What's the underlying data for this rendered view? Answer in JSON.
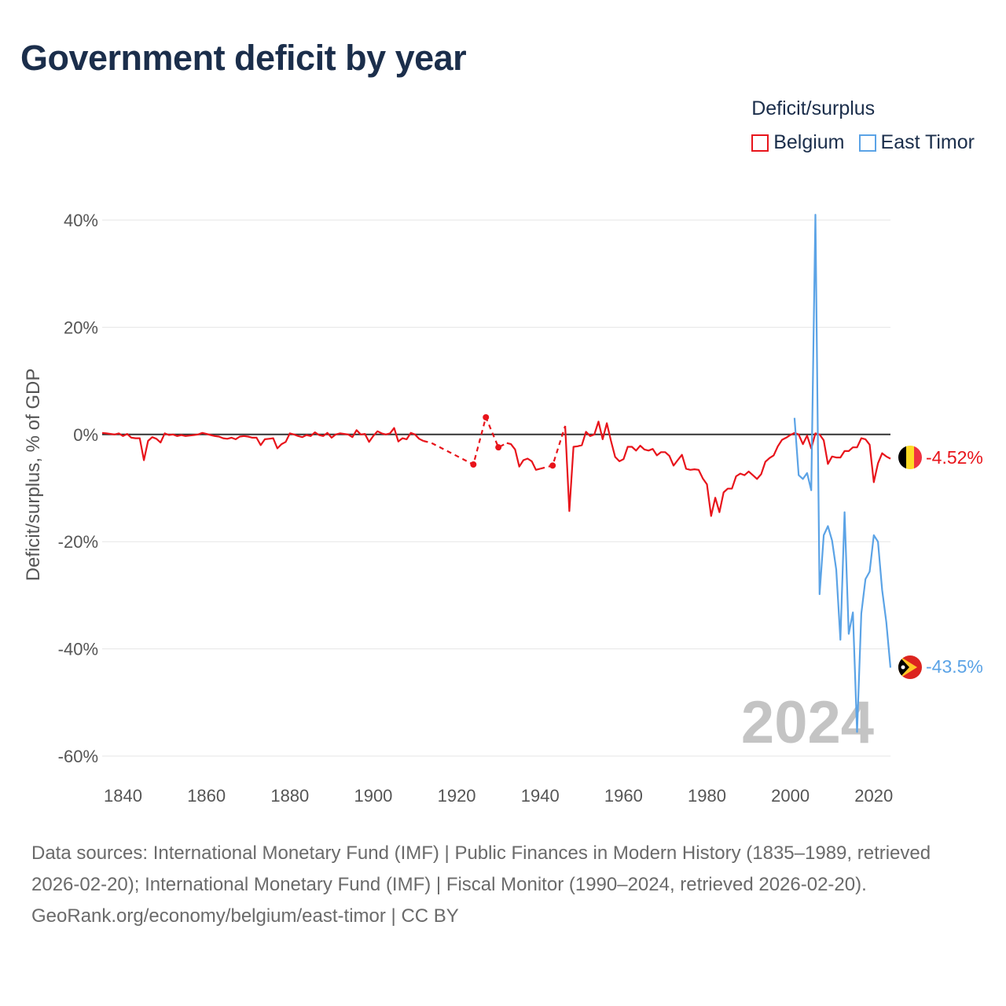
{
  "title": "Government deficit by year",
  "legend": {
    "title": "Deficit/surplus",
    "items": [
      {
        "label": "Belgium",
        "color": "#e8141b"
      },
      {
        "label": "East Timor",
        "color": "#5ba3e6"
      }
    ]
  },
  "chart_data": {
    "type": "line",
    "title": "Government deficit by year",
    "xlabel": "",
    "ylabel": "Deficit/surplus, % of GDP",
    "xlim": [
      1835,
      2024
    ],
    "ylim": [
      -60,
      40
    ],
    "x_ticks": [
      1840,
      1860,
      1880,
      1900,
      1920,
      1940,
      1960,
      1980,
      2000,
      2020
    ],
    "y_ticks": [
      40,
      20,
      0,
      -20,
      -40,
      -60
    ],
    "y_tick_labels": [
      "40%",
      "20%",
      "0%",
      "-20%",
      "-40%",
      "-60%"
    ],
    "x_tick_labels": [
      "1840",
      "1860",
      "1880",
      "1900",
      "1920",
      "1940",
      "1960",
      "1980",
      "2000",
      "2020"
    ],
    "year_watermark": "2024",
    "series": [
      {
        "name": "Belgium",
        "color": "#e8141b",
        "end_label": "-4.52%",
        "segments": [
          [
            [
              1835,
              0.3
            ],
            [
              1836,
              0.2
            ],
            [
              1837,
              0.1
            ],
            [
              1838,
              0.0
            ],
            [
              1839,
              0.2
            ],
            [
              1840,
              -0.3
            ],
            [
              1841,
              0.1
            ],
            [
              1842,
              -0.6
            ],
            [
              1843,
              -0.7
            ],
            [
              1844,
              -0.7
            ],
            [
              1845,
              -4.8
            ],
            [
              1846,
              -1.2
            ],
            [
              1847,
              -0.5
            ],
            [
              1848,
              -0.8
            ],
            [
              1849,
              -1.5
            ],
            [
              1850,
              0.2
            ],
            [
              1851,
              -0.1
            ],
            [
              1852,
              0.0
            ],
            [
              1853,
              -0.3
            ],
            [
              1854,
              -0.1
            ],
            [
              1855,
              -0.3
            ],
            [
              1856,
              -0.2
            ],
            [
              1857,
              -0.1
            ],
            [
              1858,
              0.0
            ],
            [
              1859,
              0.3
            ],
            [
              1860,
              0.1
            ],
            [
              1861,
              -0.1
            ],
            [
              1862,
              -0.3
            ],
            [
              1863,
              -0.4
            ],
            [
              1864,
              -0.7
            ],
            [
              1865,
              -0.8
            ],
            [
              1866,
              -0.6
            ],
            [
              1867,
              -0.9
            ],
            [
              1868,
              -0.4
            ],
            [
              1869,
              -0.3
            ],
            [
              1870,
              -0.4
            ],
            [
              1871,
              -0.6
            ],
            [
              1872,
              -0.6
            ],
            [
              1873,
              -2.0
            ],
            [
              1874,
              -0.9
            ],
            [
              1875,
              -0.8
            ],
            [
              1876,
              -0.7
            ],
            [
              1877,
              -2.6
            ],
            [
              1878,
              -1.8
            ],
            [
              1879,
              -1.4
            ],
            [
              1880,
              0.2
            ],
            [
              1881,
              0.0
            ],
            [
              1882,
              -0.3
            ],
            [
              1883,
              -0.5
            ],
            [
              1884,
              -0.1
            ],
            [
              1885,
              -0.3
            ],
            [
              1886,
              0.4
            ],
            [
              1887,
              -0.1
            ],
            [
              1888,
              -0.3
            ],
            [
              1889,
              0.3
            ],
            [
              1890,
              -0.6
            ],
            [
              1891,
              0.0
            ],
            [
              1892,
              0.2
            ],
            [
              1893,
              0.1
            ],
            [
              1894,
              0.0
            ],
            [
              1895,
              -0.5
            ],
            [
              1896,
              0.8
            ],
            [
              1897,
              0.0
            ],
            [
              1898,
              0.1
            ],
            [
              1899,
              -1.4
            ],
            [
              1900,
              -0.3
            ],
            [
              1901,
              0.6
            ],
            [
              1902,
              0.2
            ],
            [
              1903,
              0.0
            ],
            [
              1904,
              0.2
            ],
            [
              1905,
              1.2
            ],
            [
              1906,
              -1.3
            ],
            [
              1907,
              -0.7
            ],
            [
              1908,
              -0.9
            ],
            [
              1909,
              0.3
            ],
            [
              1910,
              0.0
            ],
            [
              1911,
              -0.8
            ],
            [
              1912,
              -1.2
            ]
          ],
          [
            [
              1912,
              -1.2
            ],
            [
              1914,
              -1.6
            ],
            [
              1924,
              -5.6
            ],
            [
              1927,
              3.2
            ],
            [
              1930,
              -2.4
            ],
            [
              1932,
              -1.6
            ]
          ],
          [
            [
              1932,
              -1.6
            ],
            [
              1933,
              -1.8
            ],
            [
              1934,
              -2.8
            ],
            [
              1935,
              -6.0
            ],
            [
              1936,
              -4.8
            ],
            [
              1937,
              -4.5
            ],
            [
              1938,
              -5.0
            ],
            [
              1939,
              -6.6
            ],
            [
              1940,
              -6.4
            ]
          ],
          [
            [
              1940,
              -6.4
            ],
            [
              1943,
              -5.8
            ],
            [
              1946,
              1.6
            ]
          ],
          [
            [
              1946,
              1.6
            ],
            [
              1947,
              -14.3
            ],
            [
              1948,
              -2.3
            ],
            [
              1949,
              -2.2
            ],
            [
              1950,
              -2.0
            ],
            [
              1951,
              0.5
            ],
            [
              1952,
              -0.3
            ],
            [
              1953,
              0.0
            ],
            [
              1954,
              2.4
            ],
            [
              1955,
              -0.9
            ],
            [
              1956,
              2.1
            ],
            [
              1957,
              -1.2
            ],
            [
              1958,
              -4.2
            ],
            [
              1959,
              -5.0
            ],
            [
              1960,
              -4.6
            ],
            [
              1961,
              -2.3
            ],
            [
              1962,
              -2.3
            ],
            [
              1963,
              -3.0
            ],
            [
              1964,
              -2.1
            ],
            [
              1965,
              -2.8
            ],
            [
              1966,
              -3.0
            ],
            [
              1967,
              -2.7
            ],
            [
              1968,
              -3.9
            ],
            [
              1969,
              -3.3
            ],
            [
              1970,
              -3.3
            ],
            [
              1971,
              -4.0
            ],
            [
              1972,
              -5.8
            ],
            [
              1973,
              -4.8
            ],
            [
              1974,
              -3.8
            ],
            [
              1975,
              -6.4
            ],
            [
              1976,
              -6.6
            ],
            [
              1977,
              -6.5
            ],
            [
              1978,
              -6.6
            ],
            [
              1979,
              -8.2
            ],
            [
              1980,
              -9.3
            ],
            [
              1981,
              -15.2
            ],
            [
              1982,
              -11.8
            ],
            [
              1983,
              -14.5
            ],
            [
              1984,
              -10.8
            ],
            [
              1985,
              -10.1
            ],
            [
              1986,
              -10.1
            ],
            [
              1987,
              -7.8
            ],
            [
              1988,
              -7.3
            ],
            [
              1989,
              -7.6
            ],
            [
              1990,
              -6.9
            ],
            [
              1991,
              -7.6
            ],
            [
              1992,
              -8.3
            ],
            [
              1993,
              -7.4
            ],
            [
              1994,
              -5.1
            ],
            [
              1995,
              -4.4
            ],
            [
              1996,
              -3.9
            ],
            [
              1997,
              -2.2
            ],
            [
              1998,
              -1.0
            ],
            [
              1999,
              -0.6
            ],
            [
              2000,
              -0.1
            ],
            [
              2001,
              0.3
            ],
            [
              2002,
              0.0
            ],
            [
              2003,
              -1.8
            ],
            [
              2004,
              -0.2
            ],
            [
              2005,
              -2.6
            ],
            [
              2006,
              0.2
            ],
            [
              2007,
              0.0
            ],
            [
              2008,
              -1.1
            ],
            [
              2009,
              -5.5
            ],
            [
              2010,
              -4.1
            ],
            [
              2011,
              -4.3
            ],
            [
              2012,
              -4.3
            ],
            [
              2013,
              -3.1
            ],
            [
              2014,
              -3.1
            ],
            [
              2015,
              -2.4
            ],
            [
              2016,
              -2.4
            ],
            [
              2017,
              -0.7
            ],
            [
              2018,
              -0.9
            ],
            [
              2019,
              -1.9
            ],
            [
              2020,
              -8.9
            ],
            [
              2021,
              -5.4
            ],
            [
              2022,
              -3.5
            ],
            [
              2023,
              -4.1
            ],
            [
              2024,
              -4.52
            ]
          ]
        ],
        "markers": [
          [
            1924,
            -5.6
          ],
          [
            1927,
            3.2
          ],
          [
            1930,
            -2.4
          ],
          [
            1943,
            -5.8
          ]
        ]
      },
      {
        "name": "East Timor",
        "color": "#5ba3e6",
        "end_label": "-43.5%",
        "segments": [
          [
            [
              2001,
              3.1
            ],
            [
              2002,
              -7.6
            ],
            [
              2003,
              -8.3
            ],
            [
              2004,
              -7.2
            ],
            [
              2005,
              -10.4
            ],
            [
              2006,
              41.0
            ],
            [
              2007,
              -29.8
            ],
            [
              2008,
              -18.8
            ],
            [
              2009,
              -17.1
            ],
            [
              2010,
              -19.8
            ],
            [
              2011,
              -25.2
            ],
            [
              2012,
              -38.3
            ],
            [
              2013,
              -14.5
            ],
            [
              2014,
              -37.2
            ],
            [
              2015,
              -33.2
            ],
            [
              2016,
              -55.5
            ],
            [
              2017,
              -33.4
            ],
            [
              2018,
              -27.0
            ],
            [
              2019,
              -25.6
            ],
            [
              2020,
              -18.8
            ],
            [
              2021,
              -20.0
            ],
            [
              2022,
              -29.0
            ],
            [
              2023,
              -35.0
            ],
            [
              2024,
              -43.5
            ]
          ]
        ]
      }
    ]
  },
  "footer": {
    "sources": "Data sources: International Monetary Fund (IMF) | Public Finances in Modern History (1835–1989, retrieved 2026-02-20); International Monetary Fund (IMF) | Fiscal Monitor (1990–2024, retrieved 2026-02-20).",
    "credit": "GeoRank.org/economy/belgium/east-timor | CC BY"
  }
}
